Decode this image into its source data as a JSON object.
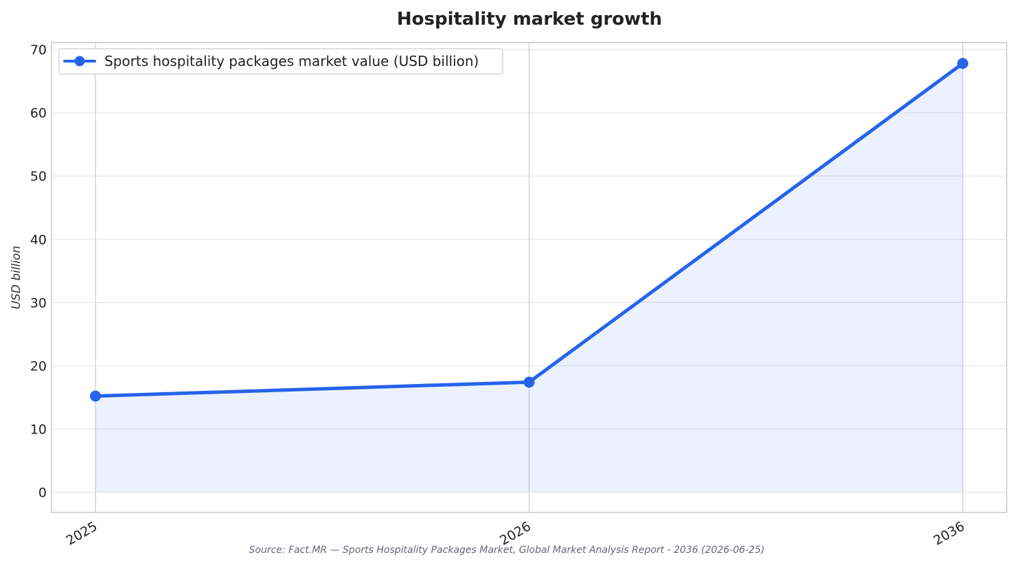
{
  "chart_data": {
    "type": "line",
    "title": "Hospitality market growth",
    "xlabel": "",
    "ylabel": "USD billion",
    "categories": [
      "2025",
      "2026",
      "2036"
    ],
    "series": [
      {
        "name": "Sports hospitality packages market value (USD billion)",
        "values": [
          15.2,
          17.4,
          67.8
        ],
        "color": "#2563eb",
        "fill_color": "#2563eb"
      }
    ],
    "ylim": [
      -3.2,
      71.1
    ],
    "yticks": [
      0,
      10,
      20,
      30,
      40,
      50,
      60,
      70
    ],
    "grid": true,
    "legend_position": "top-left",
    "area_fill": true,
    "source": "Source: Fact.MR — Sports Hospitality Packages Market, Global Market Analysis Report - 2036 (2026-06-25)"
  }
}
